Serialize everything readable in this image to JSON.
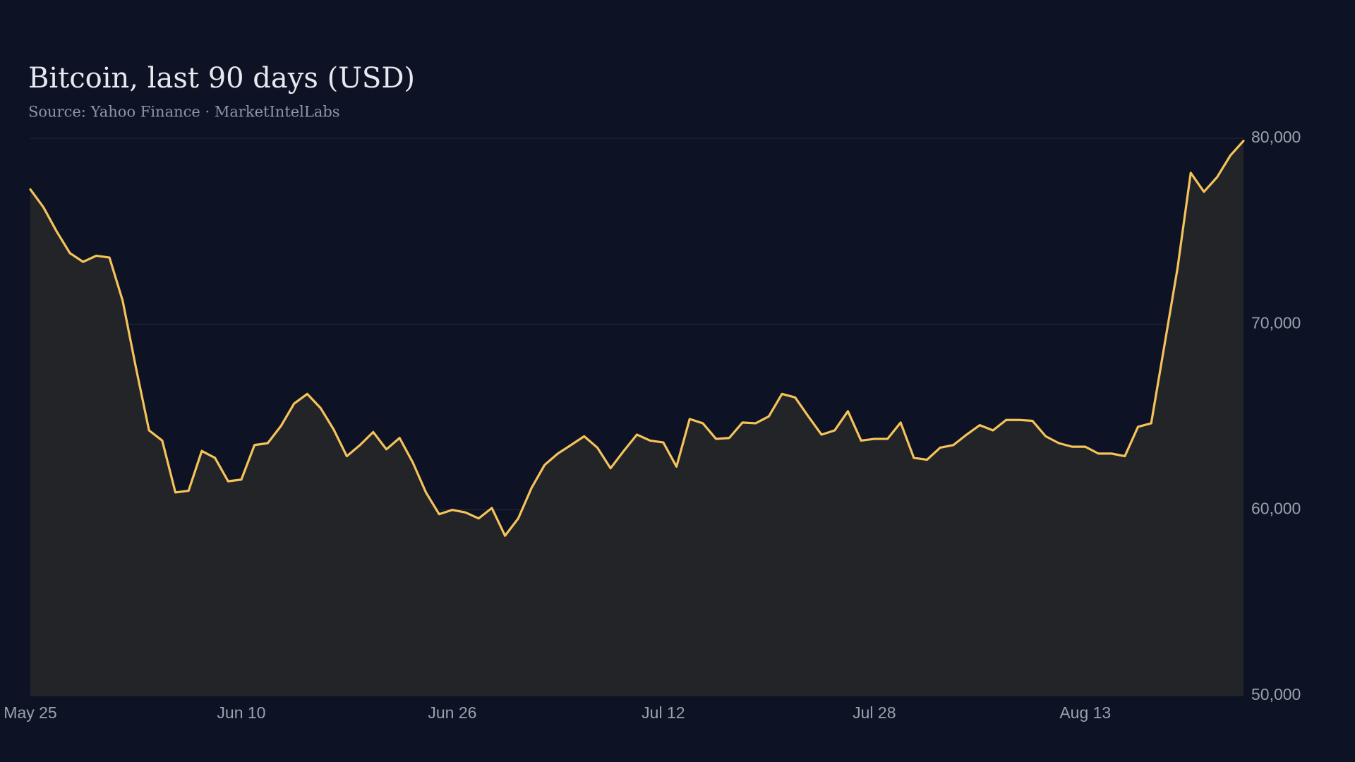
{
  "chart_data": {
    "type": "area-line",
    "title": "Bitcoin, last 90 days (USD)",
    "subtitle": "Source: Yahoo Finance · MarketIntelLabs",
    "categories": [
      "May 25",
      null,
      null,
      null,
      null,
      null,
      null,
      null,
      null,
      null,
      null,
      null,
      null,
      null,
      null,
      null,
      "Jun 10",
      null,
      null,
      null,
      null,
      null,
      null,
      null,
      null,
      null,
      null,
      null,
      null,
      null,
      null,
      null,
      "Jun 26",
      null,
      null,
      null,
      null,
      null,
      null,
      null,
      null,
      null,
      null,
      null,
      null,
      null,
      null,
      null,
      "Jul 12",
      null,
      null,
      null,
      null,
      null,
      null,
      null,
      null,
      null,
      null,
      null,
      null,
      null,
      null,
      null,
      "Jul 28",
      null,
      null,
      null,
      null,
      null,
      null,
      null,
      null,
      null,
      null,
      null,
      null,
      null,
      null,
      null,
      "Aug 13",
      null,
      null,
      null,
      null,
      null,
      null,
      null,
      null,
      null,
      null,
      null,
      null
    ],
    "series": [
      {
        "name": "Bitcoin",
        "color": "#f5c35a",
        "values": [
          77250,
          76280,
          74980,
          73820,
          73350,
          73680,
          73580,
          71260,
          67680,
          64280,
          63730,
          60940,
          61030,
          63170,
          62800,
          61540,
          61630,
          63490,
          63590,
          64510,
          65720,
          66240,
          65490,
          64330,
          62890,
          63490,
          64190,
          63260,
          63870,
          62560,
          60940,
          59770,
          60000,
          59860,
          59540,
          60100,
          58610,
          59540,
          61170,
          62420,
          63030,
          63490,
          63960,
          63350,
          62240,
          63170,
          64050,
          63730,
          63630,
          62330,
          64890,
          64660,
          63820,
          63870,
          64700,
          64660,
          65030,
          66240,
          66050,
          65030,
          64050,
          64280,
          65310,
          63730,
          63820,
          63820,
          64700,
          62800,
          62700,
          63350,
          63490,
          64050,
          64560,
          64280,
          64840,
          64840,
          64790,
          63960,
          63590,
          63400,
          63400,
          63030,
          63030,
          62890,
          64470,
          64660,
          68840,
          73020,
          78140,
          77120,
          77910,
          79070,
          79860
        ]
      }
    ],
    "ylim": [
      50000,
      80000
    ],
    "yticks": [
      {
        "value": 50000,
        "label": "50,000"
      },
      {
        "value": 60000,
        "label": "60,000"
      },
      {
        "value": 70000,
        "label": "70,000"
      },
      {
        "value": 80000,
        "label": "80,000"
      }
    ],
    "grid": true,
    "area_color": "#222428"
  }
}
